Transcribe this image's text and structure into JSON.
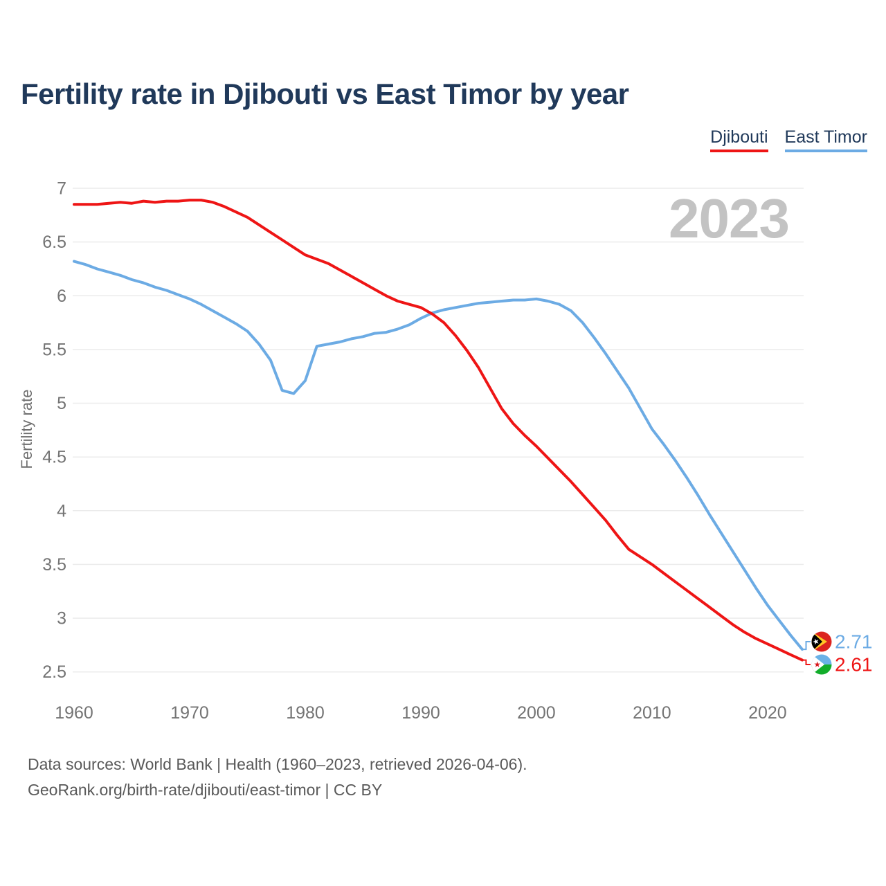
{
  "page": {
    "title": "Fertility rate in Djibouti vs East Timor by year",
    "footer_line1": "Data sources: World Bank | Health (1960–2023, retrieved 2026-04-06).",
    "footer_line2": "GeoRank.org/birth-rate/djibouti/east-timor | CC BY"
  },
  "legend": {
    "items": [
      {
        "label": "Djibouti",
        "color": "#ee1515"
      },
      {
        "label": "East Timor",
        "color": "#6cabe4"
      }
    ]
  },
  "chart_data": {
    "type": "line",
    "title": "Fertility rate in Djibouti vs East Timor by year",
    "xlabel": "",
    "ylabel": "Fertility rate",
    "watermark": "2023",
    "grid": "horizontal",
    "legend_position": "top-right",
    "xlim": [
      1960,
      2023
    ],
    "ylim": [
      2.5,
      7
    ],
    "x_ticks": [
      1960,
      1970,
      1980,
      1990,
      2000,
      2010,
      2020
    ],
    "y_ticks": [
      7,
      6.5,
      6,
      5.5,
      5,
      4.5,
      4,
      3.5,
      3,
      2.5
    ],
    "x": [
      1960,
      1961,
      1962,
      1963,
      1964,
      1965,
      1966,
      1967,
      1968,
      1969,
      1970,
      1971,
      1972,
      1973,
      1974,
      1975,
      1976,
      1977,
      1978,
      1979,
      1980,
      1981,
      1982,
      1983,
      1984,
      1985,
      1986,
      1987,
      1988,
      1989,
      1990,
      1991,
      1992,
      1993,
      1994,
      1995,
      1996,
      1997,
      1998,
      1999,
      2000,
      2001,
      2002,
      2003,
      2004,
      2005,
      2006,
      2007,
      2008,
      2009,
      2010,
      2011,
      2012,
      2013,
      2014,
      2015,
      2016,
      2017,
      2018,
      2019,
      2020,
      2021,
      2022,
      2023
    ],
    "series": [
      {
        "name": "Djibouti",
        "color": "#ee1515",
        "end_label": "2.61",
        "values": [
          6.85,
          6.85,
          6.85,
          6.86,
          6.87,
          6.86,
          6.88,
          6.87,
          6.88,
          6.88,
          6.89,
          6.89,
          6.87,
          6.83,
          6.78,
          6.73,
          6.66,
          6.59,
          6.52,
          6.45,
          6.38,
          6.34,
          6.3,
          6.24,
          6.18,
          6.12,
          6.06,
          6.0,
          5.95,
          5.92,
          5.89,
          5.83,
          5.75,
          5.63,
          5.49,
          5.33,
          5.14,
          4.95,
          4.81,
          4.7,
          4.6,
          4.49,
          4.38,
          4.27,
          4.15,
          4.03,
          3.91,
          3.77,
          3.64,
          3.57,
          3.5,
          3.42,
          3.34,
          3.26,
          3.18,
          3.1,
          3.02,
          2.94,
          2.87,
          2.81,
          2.76,
          2.71,
          2.66,
          2.61
        ]
      },
      {
        "name": "East Timor",
        "color": "#6cabe4",
        "end_label": "2.71",
        "values": [
          6.32,
          6.29,
          6.25,
          6.22,
          6.19,
          6.15,
          6.12,
          6.08,
          6.05,
          6.01,
          5.97,
          5.92,
          5.86,
          5.8,
          5.74,
          5.67,
          5.55,
          5.4,
          5.12,
          5.09,
          5.21,
          5.53,
          5.55,
          5.57,
          5.6,
          5.62,
          5.65,
          5.66,
          5.69,
          5.73,
          5.79,
          5.84,
          5.87,
          5.89,
          5.91,
          5.93,
          5.94,
          5.95,
          5.96,
          5.96,
          5.97,
          5.95,
          5.92,
          5.86,
          5.75,
          5.61,
          5.46,
          5.3,
          5.14,
          4.95,
          4.76,
          4.62,
          4.47,
          4.31,
          4.14,
          3.96,
          3.79,
          3.62,
          3.45,
          3.28,
          3.12,
          2.98,
          2.84,
          2.71
        ]
      }
    ]
  }
}
